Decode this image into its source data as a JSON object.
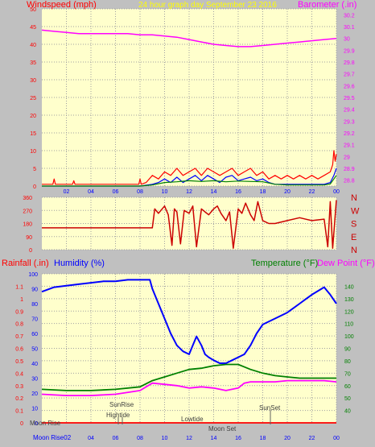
{
  "header": {
    "windspeed_label": "Windspeed (mph)",
    "title": "24 hour graph day   September 23 2016",
    "barometer_label": "Barometer (.in)"
  },
  "colors": {
    "background": "#c0c0c0",
    "plot_bg": "#ffffcc",
    "grid": "#a0a0a0",
    "red": "#ff0000",
    "blue": "#0000ff",
    "green": "#008000",
    "magenta": "#ff00ff",
    "title_yellow": "#ffff00",
    "dir_red": "#cc0000"
  },
  "bottom_labels": {
    "rainfall": "Rainfall (.in)",
    "humidity": "Humidity (%)",
    "temperature": "Temperature (°F)",
    "dewpoint": "Dew Point (°F)"
  },
  "compass": [
    "N",
    "W",
    "S",
    "E",
    "N"
  ],
  "chart_data": [
    {
      "type": "line",
      "name": "wind-barometer",
      "x_ticks": [
        "02",
        "04",
        "06",
        "08",
        "10",
        "12",
        "14",
        "16",
        "18",
        "20",
        "22",
        "00"
      ],
      "xlim": [
        0,
        24
      ],
      "y_left_ticks": [
        "0",
        "5",
        "10",
        "15",
        "20",
        "25",
        "30",
        "35",
        "40",
        "45",
        "50"
      ],
      "ylim_left": [
        0,
        50
      ],
      "y_right_ticks": [
        "28.8",
        "28.9",
        "29",
        "29.1",
        "29.2",
        "29.3",
        "29.4",
        "29.5",
        "29.6",
        "29.7",
        "29.8",
        "29.9",
        "30",
        "30.1",
        "30.2"
      ],
      "ylim_right": [
        28.75,
        30.25
      ],
      "series": [
        {
          "name": "Barometer (.in)",
          "axis": "right",
          "color": "#ff00ff",
          "x": [
            0,
            1,
            2,
            3,
            4,
            5,
            6,
            7,
            8,
            9,
            10,
            11,
            12,
            13,
            14,
            15,
            16,
            17,
            18,
            19,
            20,
            21,
            22,
            23,
            24
          ],
          "y": [
            30.07,
            30.06,
            30.05,
            30.04,
            30.04,
            30.04,
            30.04,
            30.04,
            30.03,
            30.03,
            30.02,
            30.01,
            29.99,
            29.97,
            29.95,
            29.94,
            29.93,
            29.93,
            29.94,
            29.95,
            29.96,
            29.97,
            29.98,
            29.99,
            30.0
          ]
        },
        {
          "name": "Wind gust",
          "axis": "left",
          "color": "#ff0000",
          "x": [
            0,
            0.9,
            1,
            1.1,
            2,
            2.5,
            2.6,
            2.7,
            3,
            4,
            5,
            6,
            7,
            7.9,
            8,
            8.1,
            8.5,
            9,
            9.5,
            10,
            10.5,
            11,
            11.5,
            12,
            12.5,
            13,
            13.5,
            14,
            14.5,
            15,
            15.5,
            16,
            16.5,
            17,
            17.5,
            18,
            18.5,
            19,
            19.5,
            20,
            20.5,
            21,
            21.5,
            22,
            22.5,
            23,
            23.5,
            23.7,
            23.8,
            23.9,
            24
          ],
          "y": [
            0.5,
            0.5,
            2,
            0.5,
            0.5,
            0.5,
            1.5,
            0.5,
            0.5,
            0.5,
            0.5,
            0.5,
            0.5,
            0.5,
            2,
            0.5,
            1,
            3,
            2,
            4,
            3,
            5,
            3,
            4,
            5,
            3,
            5,
            4,
            3,
            4,
            5,
            3,
            4,
            5,
            3,
            4,
            2,
            3,
            2,
            3,
            2,
            3,
            2,
            3,
            2,
            3,
            4,
            6,
            10,
            7,
            9
          ]
        },
        {
          "name": "Wind speed",
          "axis": "left",
          "color": "#0000ff",
          "x": [
            0,
            8,
            9,
            9.5,
            10,
            10.5,
            11,
            11.5,
            12,
            12.5,
            13,
            13.5,
            14,
            14.5,
            15,
            15.5,
            16,
            16.5,
            17,
            17.5,
            18,
            18.5,
            19,
            20,
            21,
            22,
            23,
            23.5,
            23.8,
            24
          ],
          "y": [
            0,
            0,
            0.5,
            1,
            2,
            1,
            2.5,
            1,
            2,
            3,
            1.5,
            3,
            2,
            1,
            2.5,
            3,
            1.5,
            2,
            2.5,
            1.5,
            2,
            1,
            0.5,
            0.5,
            0.5,
            0.5,
            0.5,
            1,
            3,
            5
          ]
        },
        {
          "name": "Wind average",
          "axis": "left",
          "color": "#008000",
          "x": [
            0,
            8,
            9,
            10,
            11,
            12,
            13,
            14,
            15,
            16,
            17,
            18,
            19,
            20,
            21,
            22,
            23,
            23.5,
            23.8,
            24
          ],
          "y": [
            0,
            0,
            0.3,
            1,
            1.2,
            1.5,
            1.3,
            1.5,
            1.2,
            1.4,
            1.3,
            1.2,
            0.5,
            0.3,
            0.3,
            0.3,
            0.3,
            0.6,
            2,
            3
          ]
        }
      ]
    },
    {
      "type": "line",
      "name": "wind-direction",
      "y_left_ticks": [
        "360",
        "270",
        "180",
        "90",
        "0"
      ],
      "ylim": [
        0,
        360
      ],
      "series": [
        {
          "name": "Wind direction",
          "color": "#cc0000",
          "x": [
            0,
            9.0,
            9.2,
            9.5,
            9.7,
            10,
            10.3,
            10.6,
            10.8,
            11,
            11.3,
            11.6,
            12,
            12.3,
            12.6,
            13,
            13.3,
            13.6,
            14,
            14.3,
            14.6,
            15,
            15.3,
            15.6,
            16,
            16.3,
            16.6,
            17,
            17.3,
            17.6,
            18,
            18.5,
            19,
            20,
            21,
            22,
            23,
            23.3,
            23.5,
            23.7,
            24
          ],
          "y": [
            150,
            150,
            280,
            250,
            270,
            300,
            240,
            30,
            280,
            260,
            40,
            270,
            250,
            300,
            20,
            280,
            260,
            240,
            280,
            300,
            250,
            200,
            260,
            10,
            280,
            250,
            320,
            240,
            200,
            330,
            200,
            180,
            180,
            200,
            220,
            200,
            210,
            20,
            330,
            10,
            340
          ]
        }
      ]
    },
    {
      "type": "line",
      "name": "humidity-temperature",
      "x_ticks": [
        "02",
        "04",
        "06",
        "08",
        "10",
        "12",
        "14",
        "16",
        "18",
        "20",
        "22",
        "00"
      ],
      "y_left_ticks": [
        "0",
        "0.1",
        "0.2",
        "0.3",
        "0.4",
        "0.5",
        "0.6",
        "0.7",
        "0.8",
        "0.9",
        "1",
        "1.1"
      ],
      "ylim_left": [
        0,
        1.2
      ],
      "humidity_ticks": [
        "0",
        "10",
        "20",
        "30",
        "40",
        "50",
        "60",
        "70",
        "80",
        "90",
        "100"
      ],
      "ylim_humidity": [
        0,
        100
      ],
      "y_right_ticks": [
        "40",
        "50",
        "60",
        "70",
        "80",
        "90",
        "100",
        "110",
        "120",
        "130",
        "140"
      ],
      "ylim_right": [
        30,
        150
      ],
      "series": [
        {
          "name": "Humidity (%)",
          "axis": "humidity",
          "color": "#0000ff",
          "x": [
            0,
            1,
            2,
            3,
            4,
            5,
            6,
            7,
            8,
            8.8,
            9,
            9.5,
            10,
            10.5,
            11,
            11.5,
            12,
            12.3,
            12.6,
            13,
            13.3,
            13.6,
            14,
            14.5,
            15,
            15.5,
            16,
            16.5,
            17,
            17.5,
            18,
            19,
            20,
            21,
            22,
            23,
            23.5,
            24
          ],
          "y": [
            88,
            91,
            92,
            93,
            94,
            95,
            95,
            96,
            96,
            96,
            90,
            80,
            70,
            60,
            52,
            48,
            46,
            52,
            58,
            52,
            46,
            44,
            42,
            40,
            40,
            42,
            44,
            46,
            52,
            60,
            66,
            70,
            74,
            80,
            86,
            91,
            86,
            80
          ]
        },
        {
          "name": "Temperature (°F)",
          "axis": "right",
          "color": "#008000",
          "x": [
            0,
            2,
            4,
            6,
            8,
            9,
            10,
            11,
            12,
            13,
            14,
            15,
            16,
            16.5,
            17,
            18,
            19,
            20,
            21,
            22,
            23,
            24
          ],
          "y": [
            57,
            56,
            56,
            57,
            59,
            64,
            67,
            70,
            73,
            74,
            76,
            77,
            77,
            75,
            73,
            70,
            68,
            67,
            66,
            66,
            66,
            66
          ]
        },
        {
          "name": "Dew Point (°F)",
          "axis": "right",
          "color": "#ff00ff",
          "x": [
            0,
            2,
            4,
            6,
            8,
            9,
            10,
            11,
            12,
            13,
            14,
            15,
            16,
            16.5,
            17,
            18,
            19,
            20,
            21,
            22,
            23,
            24
          ],
          "y": [
            53,
            52,
            52,
            53,
            56,
            62,
            61,
            60,
            58,
            59,
            58,
            56,
            58,
            62,
            63,
            63,
            63,
            64,
            64,
            64,
            64,
            63
          ]
        },
        {
          "name": "Rainfall (.in)",
          "axis": "left",
          "color": "#ff0000",
          "x": [
            0,
            24
          ],
          "y": [
            0,
            0
          ]
        }
      ]
    }
  ],
  "events": {
    "moon_rise_top": "Moon Rise",
    "moon_rise_axis": "Moon Rise02",
    "sunrise": "SunRise",
    "hightide": "Hightide",
    "lowtide": "Lowtide",
    "moonset": "Moon Set",
    "sunset": "SunSet"
  }
}
